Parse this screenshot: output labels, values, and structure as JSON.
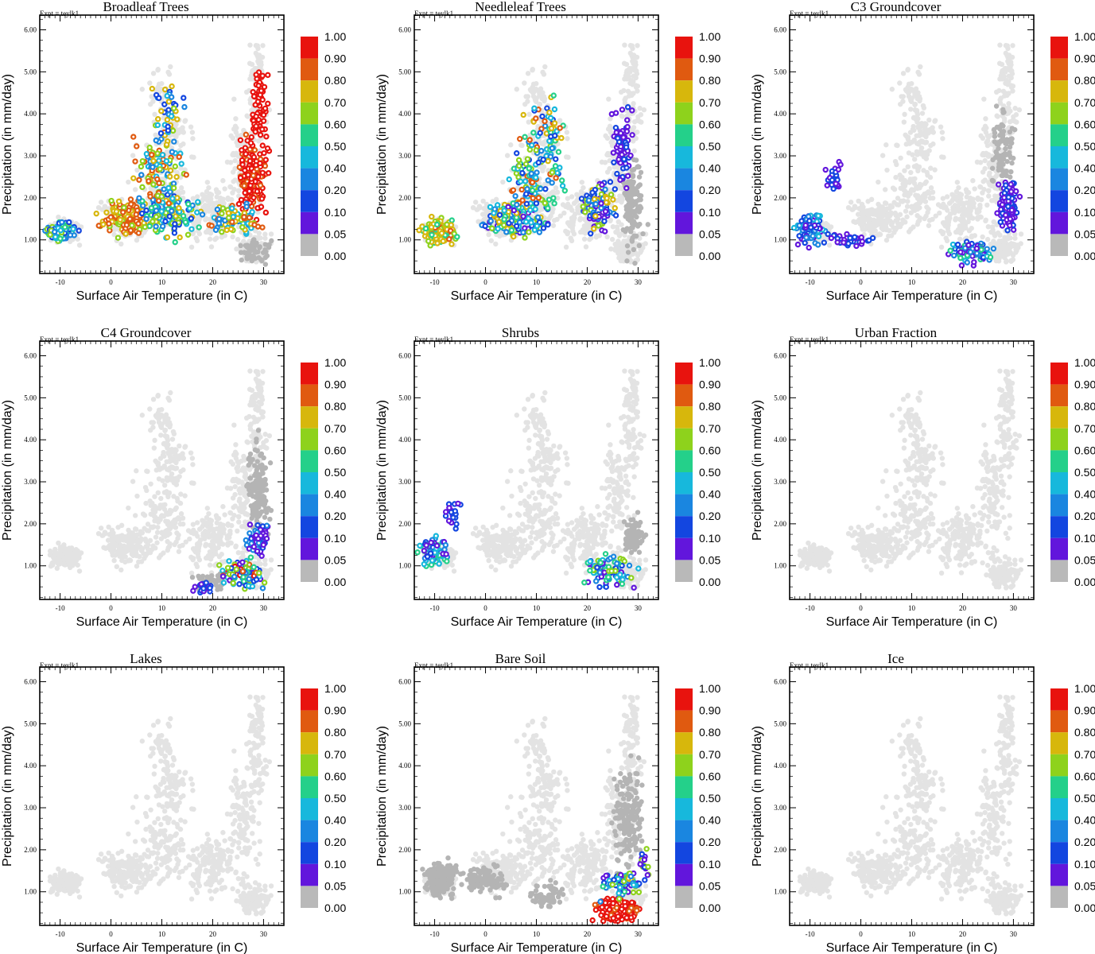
{
  "figure": {
    "experiment_label": "Expt = teylk1",
    "xlabel": "Surface Air Temperature (in C)",
    "ylabel": "Precipitation (in mm/day)"
  },
  "chart_data": [
    {
      "type": "scatter",
      "title": "Broadleaf Trees",
      "pattern": "broadleaf"
    },
    {
      "type": "scatter",
      "title": "Needleleaf Trees",
      "pattern": "needleleaf"
    },
    {
      "type": "scatter",
      "title": "C3 Groundcover",
      "pattern": "c3"
    },
    {
      "type": "scatter",
      "title": "C4 Groundcover",
      "pattern": "c4"
    },
    {
      "type": "scatter",
      "title": "Shrubs",
      "pattern": "shrubs"
    },
    {
      "type": "scatter",
      "title": "Urban Fraction",
      "pattern": "none"
    },
    {
      "type": "scatter",
      "title": "Lakes",
      "pattern": "none"
    },
    {
      "type": "scatter",
      "title": "Bare Soil",
      "pattern": "baresoil"
    },
    {
      "type": "scatter",
      "title": "Ice",
      "pattern": "none"
    }
  ],
  "axes": {
    "xlim": [
      -14,
      34
    ],
    "ylim": [
      0.2,
      6.35
    ],
    "xticks": [
      -10,
      0,
      10,
      20,
      30
    ],
    "xtick_labels": [
      "-10",
      "0",
      "10",
      "20",
      "30"
    ],
    "yticks": [
      1,
      2,
      3,
      4,
      5,
      6
    ],
    "ytick_labels": [
      "1.00",
      "2.00",
      "3.00",
      "4.00",
      "5.00",
      "6.00"
    ]
  },
  "colorbar": {
    "labels": [
      "1.00",
      "0.90",
      "0.80",
      "0.70",
      "0.60",
      "0.50",
      "0.40",
      "0.20",
      "0.10",
      "0.05",
      "0.00"
    ],
    "colors": [
      "#e8130e",
      "#e05a10",
      "#d7b70c",
      "#8ed21c",
      "#24d08a",
      "#17b8dc",
      "#1a86e0",
      "#1346e0",
      "#6216dc",
      "#b9b9b9"
    ],
    "background_point_color": "#e3e3e3",
    "other_tile_point_color": "#b4b4b4"
  }
}
